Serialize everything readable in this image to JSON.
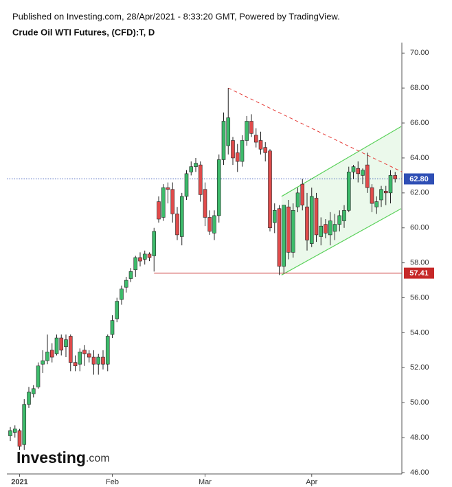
{
  "chart_data": {
    "type": "candlestick",
    "header": "Published on Investing.com, 28/Apr/2021 - 8:33:20 GMT, Powered by TradingView.",
    "title": "Crude Oil WTI Futures, (CFD):T, D",
    "logo": {
      "name": "Investing",
      "suffix": ".com"
    },
    "categories": [
      null,
      null,
      "2021",
      null,
      null,
      null,
      null,
      null,
      null,
      null,
      null,
      null,
      null,
      null,
      null,
      null,
      null,
      null,
      null,
      null,
      null,
      null,
      "Feb",
      null,
      null,
      null,
      null,
      null,
      null,
      null,
      null,
      null,
      null,
      null,
      null,
      null,
      null,
      null,
      null,
      null,
      null,
      null,
      "Mar",
      null,
      null,
      null,
      null,
      null,
      null,
      null,
      null,
      null,
      null,
      null,
      null,
      null,
      null,
      null,
      null,
      null,
      null,
      null,
      null,
      null,
      null,
      "Apr",
      null,
      null,
      null,
      null,
      null,
      null,
      null,
      null,
      null,
      null,
      null,
      null,
      null,
      null,
      null,
      null,
      null,
      null
    ],
    "open": [
      48.1,
      48.3,
      48.4,
      47.6,
      49.9,
      50.5,
      50.9,
      52.2,
      52.4,
      53.0,
      52.8,
      53.7,
      53.2,
      53.8,
      52.3,
      52.2,
      53.0,
      52.8,
      52.6,
      52.2,
      52.6,
      52.2,
      53.9,
      54.8,
      55.9,
      56.6,
      57.1,
      57.6,
      58.3,
      58.2,
      58.5,
      58.4,
      61.5,
      60.6,
      62.3,
      62.2,
      60.8,
      59.5,
      61.8,
      63.2,
      63.5,
      63.6,
      62.2,
      60.6,
      59.7,
      60.7,
      63.9,
      64.7,
      65.0,
      64.3,
      63.8,
      65.0,
      66.1,
      65.3,
      65.0,
      64.6,
      64.4,
      60.3,
      61.1,
      57.8,
      61.2,
      58.6,
      61.2,
      62.5,
      61.2,
      59.1,
      61.7,
      59.5,
      60.2,
      59.6,
      59.8,
      60.2,
      60.4,
      61.0,
      63.2,
      63.4,
      63.0,
      63.6,
      62.3,
      61.2,
      61.6,
      62.1,
      62.0,
      63.0
    ],
    "high": [
      48.6,
      48.7,
      48.5,
      50.2,
      50.9,
      51.0,
      52.3,
      53.0,
      53.9,
      53.4,
      53.9,
      53.9,
      53.9,
      53.9,
      52.7,
      53.1,
      53.3,
      53.0,
      53.0,
      52.8,
      53.0,
      53.9,
      55.0,
      56.0,
      56.7,
      57.2,
      57.7,
      58.4,
      58.6,
      58.7,
      58.6,
      60.0,
      61.8,
      62.5,
      62.6,
      62.6,
      61.2,
      62.0,
      63.3,
      63.8,
      64.0,
      63.8,
      62.6,
      61.0,
      61.0,
      64.2,
      66.6,
      68.0,
      65.2,
      64.8,
      65.3,
      66.4,
      66.5,
      65.7,
      65.5,
      64.9,
      64.5,
      61.4,
      61.3,
      61.3,
      61.6,
      61.4,
      62.3,
      62.8,
      62.0,
      62.3,
      62.0,
      60.6,
      60.5,
      60.9,
      60.8,
      61.0,
      61.3,
      63.5,
      63.6,
      63.8,
      63.4,
      64.3,
      62.5,
      61.8,
      62.4,
      62.4,
      63.3,
      63.2
    ],
    "low": [
      47.8,
      48.0,
      47.3,
      47.3,
      49.7,
      50.3,
      50.8,
      51.7,
      52.2,
      52.3,
      52.7,
      52.7,
      52.6,
      51.8,
      51.8,
      51.8,
      52.1,
      52.3,
      51.6,
      51.6,
      51.9,
      51.8,
      53.7,
      54.6,
      55.6,
      56.3,
      56.9,
      57.2,
      57.8,
      57.9,
      58.1,
      57.5,
      60.3,
      60.4,
      61.4,
      60.3,
      59.3,
      59.0,
      61.6,
      63.0,
      63.2,
      61.5,
      60.1,
      59.6,
      59.3,
      60.3,
      63.6,
      64.2,
      63.6,
      63.2,
      63.5,
      64.7,
      65.2,
      64.6,
      64.2,
      63.8,
      59.8,
      59.7,
      57.3,
      57.4,
      58.2,
      58.3,
      60.9,
      61.0,
      58.7,
      58.9,
      59.2,
      59.0,
      59.4,
      59.0,
      59.3,
      59.8,
      60.0,
      60.9,
      62.8,
      62.6,
      62.5,
      62.0,
      60.9,
      60.8,
      61.2,
      61.3,
      61.4,
      62.6
    ],
    "close": [
      48.4,
      48.5,
      47.5,
      49.9,
      50.6,
      50.8,
      52.1,
      52.4,
      52.9,
      52.6,
      53.7,
      53.0,
      53.6,
      52.3,
      52.1,
      52.9,
      52.8,
      52.6,
      52.2,
      52.6,
      52.2,
      53.8,
      54.7,
      55.8,
      56.5,
      57.0,
      57.5,
      58.3,
      58.1,
      58.5,
      58.3,
      59.8,
      60.5,
      62.3,
      62.2,
      60.8,
      59.6,
      61.8,
      63.1,
      63.5,
      63.7,
      61.9,
      60.6,
      59.8,
      60.7,
      63.9,
      66.1,
      66.3,
      64.0,
      63.8,
      65.0,
      66.1,
      65.4,
      64.9,
      64.5,
      64.3,
      60.0,
      61.0,
      57.8,
      61.3,
      58.6,
      61.0,
      62.0,
      61.3,
      59.3,
      61.8,
      59.6,
      60.1,
      59.7,
      60.4,
      60.2,
      60.7,
      61.0,
      63.2,
      63.5,
      63.1,
      63.3,
      62.3,
      61.4,
      61.5,
      62.2,
      62.0,
      63.0,
      62.8
    ],
    "up_color": "#3dbb6b",
    "down_color": "#e04b4b",
    "ylim": [
      45.92,
      70.6
    ],
    "yticks": [
      {
        "value": 46,
        "label": "46.00"
      },
      {
        "value": 48,
        "label": "48.00"
      },
      {
        "value": 50,
        "label": "50.00"
      },
      {
        "value": 52,
        "label": "52.00"
      },
      {
        "value": 54,
        "label": "54.00"
      },
      {
        "value": 56,
        "label": "56.00"
      },
      {
        "value": 58,
        "label": "58.00"
      },
      {
        "value": 60,
        "label": "60.00"
      },
      {
        "value": 62,
        "label": "62.00"
      },
      {
        "value": 64,
        "label": "64.00"
      },
      {
        "value": 66,
        "label": "66.00"
      },
      {
        "value": 68,
        "label": "68.00"
      },
      {
        "value": 70,
        "label": "70.00"
      }
    ],
    "last_price": {
      "value": 62.8,
      "label": "62.80",
      "color": "#2f4fb5"
    },
    "support": {
      "value": 57.41,
      "label": "57.41",
      "color": "#c62828",
      "start": 31
    },
    "trend_line": {
      "x": [
        47,
        84.5
      ],
      "y": [
        68,
        63.2
      ],
      "color": "#e53935"
    },
    "channel": {
      "x": [
        58.5,
        84.3
      ],
      "upper": [
        61.8,
        65.8
      ],
      "lower": [
        57.3,
        61.1
      ],
      "color": "#5ad15a"
    }
  }
}
